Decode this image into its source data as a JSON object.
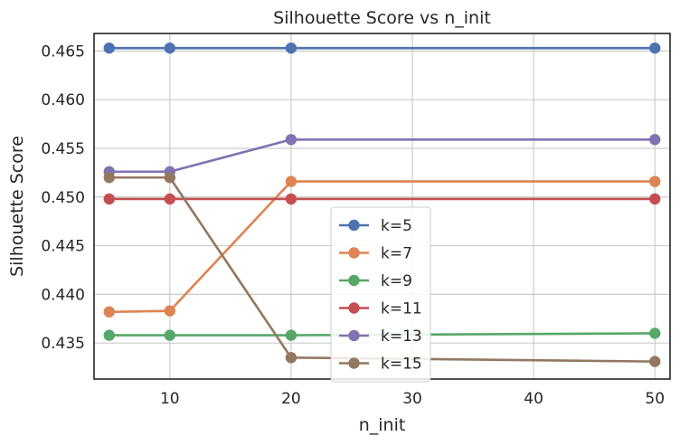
{
  "chart_data": {
    "type": "line",
    "title": "Silhouette Score vs n_init",
    "xlabel": "n_init",
    "ylabel": "Silhouette Score",
    "xlim": [
      3.75,
      51.25
    ],
    "ylim": [
      0.4313,
      0.4668
    ],
    "xticks": [
      10,
      20,
      30,
      40,
      50
    ],
    "yticks": [
      0.435,
      0.44,
      0.445,
      0.45,
      0.455,
      0.46,
      0.465
    ],
    "ytick_labels": [
      "0.435",
      "0.440",
      "0.445",
      "0.450",
      "0.455",
      "0.460",
      "0.465"
    ],
    "grid": true,
    "legend_position": "lower center",
    "x": [
      5,
      10,
      20,
      50
    ],
    "series": [
      {
        "name": "k=5",
        "color": "#4c72b0",
        "values": [
          0.4653,
          0.4653,
          0.4653,
          0.4653
        ]
      },
      {
        "name": "k=7",
        "color": "#dd8452",
        "values": [
          0.4382,
          0.4383,
          0.4516,
          0.4516
        ]
      },
      {
        "name": "k=9",
        "color": "#55a868",
        "values": [
          0.4358,
          0.4358,
          0.4358,
          0.436
        ]
      },
      {
        "name": "k=11",
        "color": "#c44e52",
        "values": [
          0.4498,
          0.4498,
          0.4498,
          0.4498
        ]
      },
      {
        "name": "k=13",
        "color": "#8172b3",
        "values": [
          0.4526,
          0.4526,
          0.4559,
          0.4559
        ]
      },
      {
        "name": "k=15",
        "color": "#937860",
        "values": [
          0.452,
          0.452,
          0.4335,
          0.4331
        ]
      }
    ]
  }
}
